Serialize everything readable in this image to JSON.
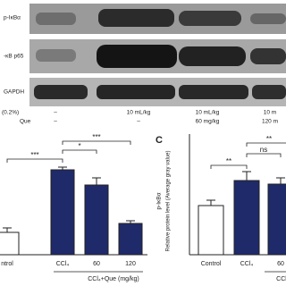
{
  "blot": {
    "rows": [
      "p-IκBα",
      "-κB p65",
      "GAPDH"
    ],
    "treatment_labels": [
      "(0.2%)",
      "Que"
    ],
    "columns": [
      {
        "vehicle": "–",
        "que": "–"
      },
      {
        "vehicle": "10 mL/kg",
        "que": "–"
      },
      {
        "vehicle": "10 mL/kg",
        "que": "60 mg/kg"
      },
      {
        "vehicle": "10 m",
        "que": "120 m"
      }
    ]
  },
  "chart_data": [
    {
      "type": "bar",
      "categories": [
        "ntrol",
        "CCl₄",
        "60",
        "120"
      ],
      "values": [
        0.25,
        0.95,
        0.78,
        0.35
      ],
      "errors": [
        0.05,
        0.03,
        0.08,
        0.03
      ],
      "colors": [
        "#ffffff",
        "#1f2a6b",
        "#1f2a6b",
        "#1f2a6b"
      ],
      "group_label": "CCl₄+Que (mg/kg)",
      "significance": [
        "***",
        "*",
        "***"
      ]
    },
    {
      "type": "bar",
      "panel_label": "C",
      "ylabel_top": "p-IκBα",
      "ylabel": "Relative protein level (Average gray value)",
      "categories": [
        "Control",
        "CCl₄",
        "60"
      ],
      "values": [
        0.55,
        0.83,
        0.79
      ],
      "errors": [
        0.06,
        0.1,
        0.07
      ],
      "colors": [
        "#ffffff",
        "#1f2a6b",
        "#1f2a6b"
      ],
      "group_label": "CCl",
      "significance": [
        "**",
        "ns",
        "**"
      ]
    }
  ]
}
